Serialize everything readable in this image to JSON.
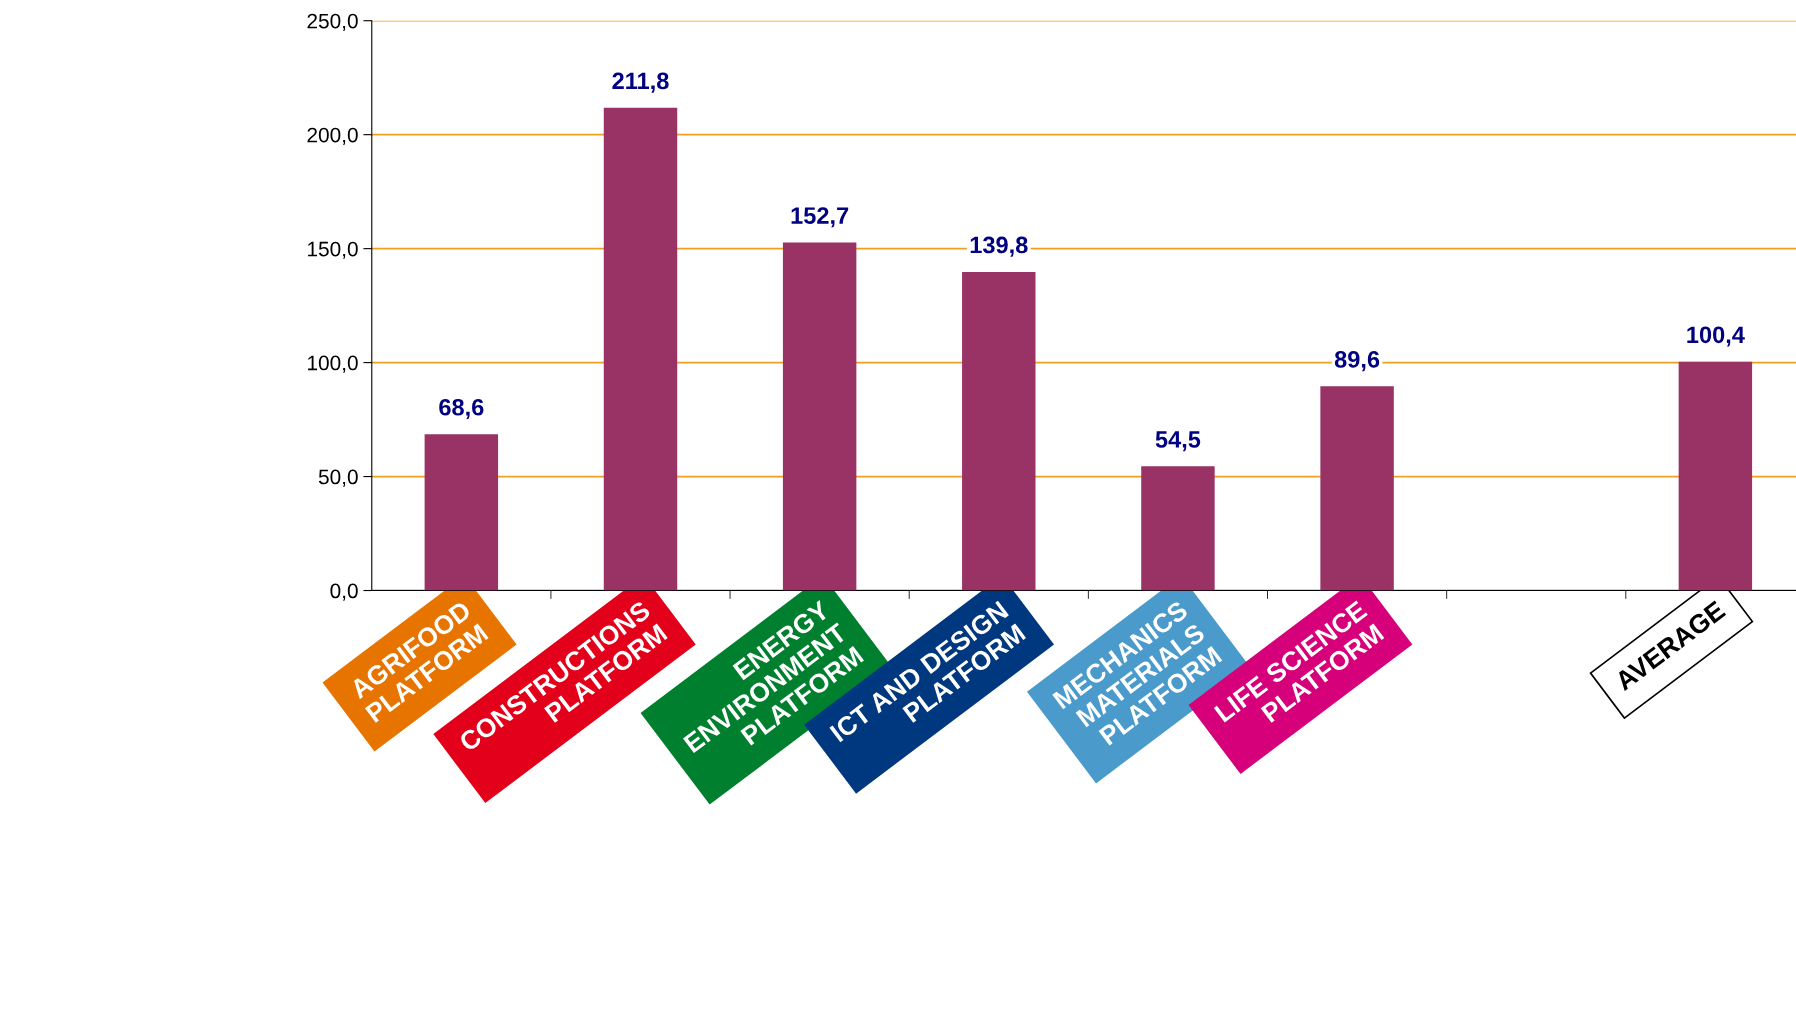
{
  "chart_data": {
    "type": "bar",
    "categories": [
      "AGRIFOOD\nPLATFORM",
      "CONSTRUCTIONS\nPLATFORM",
      "ENERGY\nENVIRONMENT\nPLATFORM",
      "ICT AND DESIGN\nPLATFORM",
      "MECHANICS\nMATERIALS\nPLATFORM",
      "LIFE SCIENCE\nPLATFORM",
      null,
      "AVERAGE"
    ],
    "values": [
      68.6,
      211.8,
      152.7,
      139.8,
      54.5,
      89.6,
      null,
      100.4
    ],
    "value_labels": [
      "68,6",
      "211,8",
      "152,7",
      "139,8",
      "54,5",
      "89,6",
      null,
      "100,4"
    ],
    "color": "#993366",
    "ylim": [
      0,
      250
    ],
    "yticks": [
      {
        "value": 0,
        "label": "0,0"
      },
      {
        "value": 50,
        "label": "50,0"
      },
      {
        "value": 100,
        "label": "100,0"
      },
      {
        "value": 150,
        "label": "150,0"
      },
      {
        "value": 200,
        "label": "200,0"
      },
      {
        "value": 250,
        "label": "250,0"
      }
    ],
    "grid": "y"
  }
}
